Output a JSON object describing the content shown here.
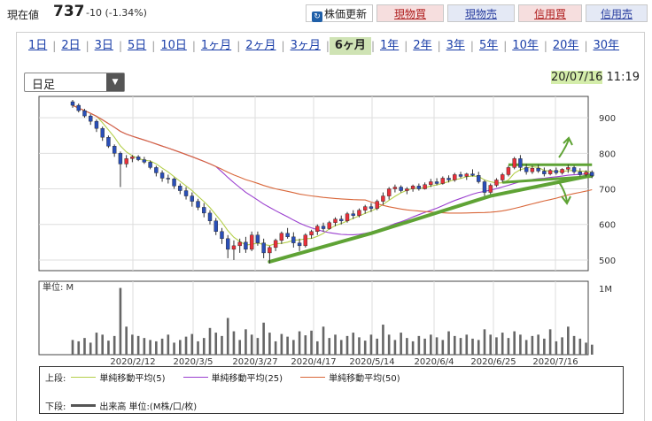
{
  "header": {
    "price_label": "現在値",
    "price_value": "737",
    "price_change": "-10 (-1.34%)",
    "refresh_label": "株価更新",
    "buttons": [
      "現物買",
      "現物売",
      "信用買",
      "信用売"
    ]
  },
  "tabs": {
    "items": [
      "1日",
      "2日",
      "3日",
      "5日",
      "10日",
      "1ヶ月",
      "2ヶ月",
      "3ヶ月",
      "6ヶ月",
      "1年",
      "2年",
      "3年",
      "5年",
      "10年",
      "20年",
      "30年"
    ],
    "active": "6ヶ月"
  },
  "span_select": {
    "value": "日足"
  },
  "timestamp": {
    "date": "20/07/16",
    "time": "11:19"
  },
  "chart_data": {
    "type": "candlestick",
    "price_axis": {
      "ticks": [
        900,
        800,
        700,
        600,
        500
      ],
      "range": [
        470,
        960
      ]
    },
    "volume_axis": {
      "unit_label": "単位: M",
      "ticks": [
        "1M"
      ],
      "range": [
        0,
        1.1
      ]
    },
    "x_tick_labels": [
      "2020/2/12",
      "2020/3/5",
      "2020/3/27",
      "2020/4/17",
      "2020/5/14",
      "2020/6/4",
      "2020/6/25",
      "2020/7/16"
    ],
    "candles": [
      [
        945,
        950,
        928,
        935
      ],
      [
        935,
        940,
        915,
        920
      ],
      [
        920,
        925,
        900,
        905
      ],
      [
        905,
        910,
        880,
        890
      ],
      [
        890,
        895,
        860,
        870
      ],
      [
        870,
        875,
        835,
        845
      ],
      [
        845,
        850,
        815,
        820
      ],
      [
        820,
        825,
        790,
        800
      ],
      [
        800,
        805,
        705,
        770
      ],
      [
        770,
        795,
        760,
        785
      ],
      [
        785,
        795,
        775,
        790
      ],
      [
        790,
        795,
        778,
        782
      ],
      [
        782,
        790,
        770,
        775
      ],
      [
        775,
        780,
        755,
        760
      ],
      [
        760,
        765,
        735,
        745
      ],
      [
        745,
        752,
        720,
        730
      ],
      [
        730,
        740,
        715,
        728
      ],
      [
        728,
        732,
        700,
        708
      ],
      [
        708,
        715,
        685,
        695
      ],
      [
        695,
        705,
        670,
        680
      ],
      [
        680,
        690,
        650,
        665
      ],
      [
        665,
        672,
        640,
        648
      ],
      [
        648,
        660,
        620,
        632
      ],
      [
        632,
        640,
        600,
        610
      ],
      [
        610,
        618,
        570,
        580
      ],
      [
        580,
        590,
        545,
        560
      ],
      [
        560,
        570,
        505,
        530
      ],
      [
        530,
        555,
        500,
        540
      ],
      [
        540,
        560,
        520,
        550
      ],
      [
        550,
        565,
        520,
        530
      ],
      [
        530,
        580,
        525,
        570
      ],
      [
        570,
        580,
        540,
        548
      ],
      [
        548,
        560,
        505,
        520
      ],
      [
        520,
        540,
        490,
        535
      ],
      [
        535,
        560,
        525,
        555
      ],
      [
        555,
        580,
        545,
        575
      ],
      [
        575,
        590,
        560,
        565
      ],
      [
        565,
        578,
        535,
        548
      ],
      [
        548,
        560,
        525,
        540
      ],
      [
        540,
        575,
        535,
        570
      ],
      [
        570,
        585,
        560,
        580
      ],
      [
        580,
        600,
        570,
        595
      ],
      [
        595,
        605,
        580,
        588
      ],
      [
        588,
        610,
        585,
        605
      ],
      [
        605,
        620,
        595,
        615
      ],
      [
        615,
        625,
        600,
        610
      ],
      [
        610,
        635,
        605,
        630
      ],
      [
        630,
        640,
        615,
        625
      ],
      [
        625,
        645,
        620,
        640
      ],
      [
        640,
        655,
        630,
        650
      ],
      [
        650,
        660,
        635,
        645
      ],
      [
        645,
        670,
        640,
        665
      ],
      [
        665,
        690,
        655,
        680
      ],
      [
        680,
        705,
        670,
        700
      ],
      [
        700,
        712,
        690,
        705
      ],
      [
        705,
        710,
        690,
        695
      ],
      [
        695,
        705,
        685,
        700
      ],
      [
        700,
        712,
        692,
        708
      ],
      [
        708,
        715,
        695,
        700
      ],
      [
        700,
        718,
        698,
        712
      ],
      [
        712,
        728,
        705,
        720
      ],
      [
        720,
        730,
        710,
        715
      ],
      [
        715,
        735,
        712,
        730
      ],
      [
        730,
        738,
        718,
        725
      ],
      [
        725,
        745,
        720,
        740
      ],
      [
        740,
        748,
        730,
        735
      ],
      [
        735,
        745,
        725,
        742
      ],
      [
        742,
        755,
        735,
        738
      ],
      [
        738,
        748,
        715,
        720
      ],
      [
        720,
        725,
        680,
        690
      ],
      [
        690,
        715,
        685,
        710
      ],
      [
        710,
        730,
        705,
        725
      ],
      [
        725,
        745,
        718,
        740
      ],
      [
        740,
        765,
        735,
        760
      ],
      [
        760,
        790,
        755,
        785
      ],
      [
        785,
        795,
        750,
        760
      ],
      [
        760,
        770,
        740,
        748
      ],
      [
        748,
        765,
        742,
        758
      ],
      [
        758,
        768,
        745,
        750
      ],
      [
        750,
        760,
        735,
        742
      ],
      [
        742,
        756,
        738,
        752
      ],
      [
        752,
        760,
        740,
        745
      ],
      [
        745,
        758,
        740,
        755
      ],
      [
        755,
        768,
        745,
        760
      ],
      [
        760,
        765,
        742,
        748
      ],
      [
        748,
        758,
        735,
        740
      ],
      [
        740,
        752,
        735,
        747
      ],
      [
        747,
        752,
        730,
        737
      ]
    ],
    "volumes": [
      0.22,
      0.2,
      0.25,
      0.18,
      0.33,
      0.3,
      0.21,
      0.28,
      1.0,
      0.42,
      0.3,
      0.28,
      0.25,
      0.22,
      0.2,
      0.24,
      0.3,
      0.18,
      0.22,
      0.27,
      0.31,
      0.2,
      0.25,
      0.4,
      0.33,
      0.28,
      0.55,
      0.35,
      0.22,
      0.38,
      0.3,
      0.25,
      0.48,
      0.33,
      0.2,
      0.31,
      0.27,
      0.22,
      0.35,
      0.29,
      0.36,
      0.2,
      0.42,
      0.25,
      0.3,
      0.22,
      0.28,
      0.33,
      0.26,
      0.21,
      0.3,
      0.24,
      0.45,
      0.3,
      0.22,
      0.33,
      0.25,
      0.2,
      0.28,
      0.24,
      0.3,
      0.26,
      0.22,
      0.35,
      0.28,
      0.25,
      0.3,
      0.24,
      0.22,
      0.38,
      0.3,
      0.26,
      0.33,
      0.25,
      0.35,
      0.3,
      0.22,
      0.28,
      0.3,
      0.24,
      0.38,
      0.2,
      0.26,
      0.42,
      0.28,
      0.24,
      0.18,
      0.15
    ],
    "ma_colors": {
      "ma5": "#b4cf4a",
      "ma25": "#9a3fcf",
      "ma50": "#d9673a"
    },
    "trendlines_color": "#5fa335"
  },
  "legend": {
    "upper_label": "上段:",
    "items": [
      {
        "label": "単純移動平均(5)",
        "color": "#b4cf4a"
      },
      {
        "label": "単純移動平均(25)",
        "color": "#9a3fcf"
      },
      {
        "label": "単純移動平均(50)",
        "color": "#d9673a"
      }
    ],
    "lower_label": "下段:",
    "volume_label": "出来高 単位:(M株/口/枚)"
  }
}
